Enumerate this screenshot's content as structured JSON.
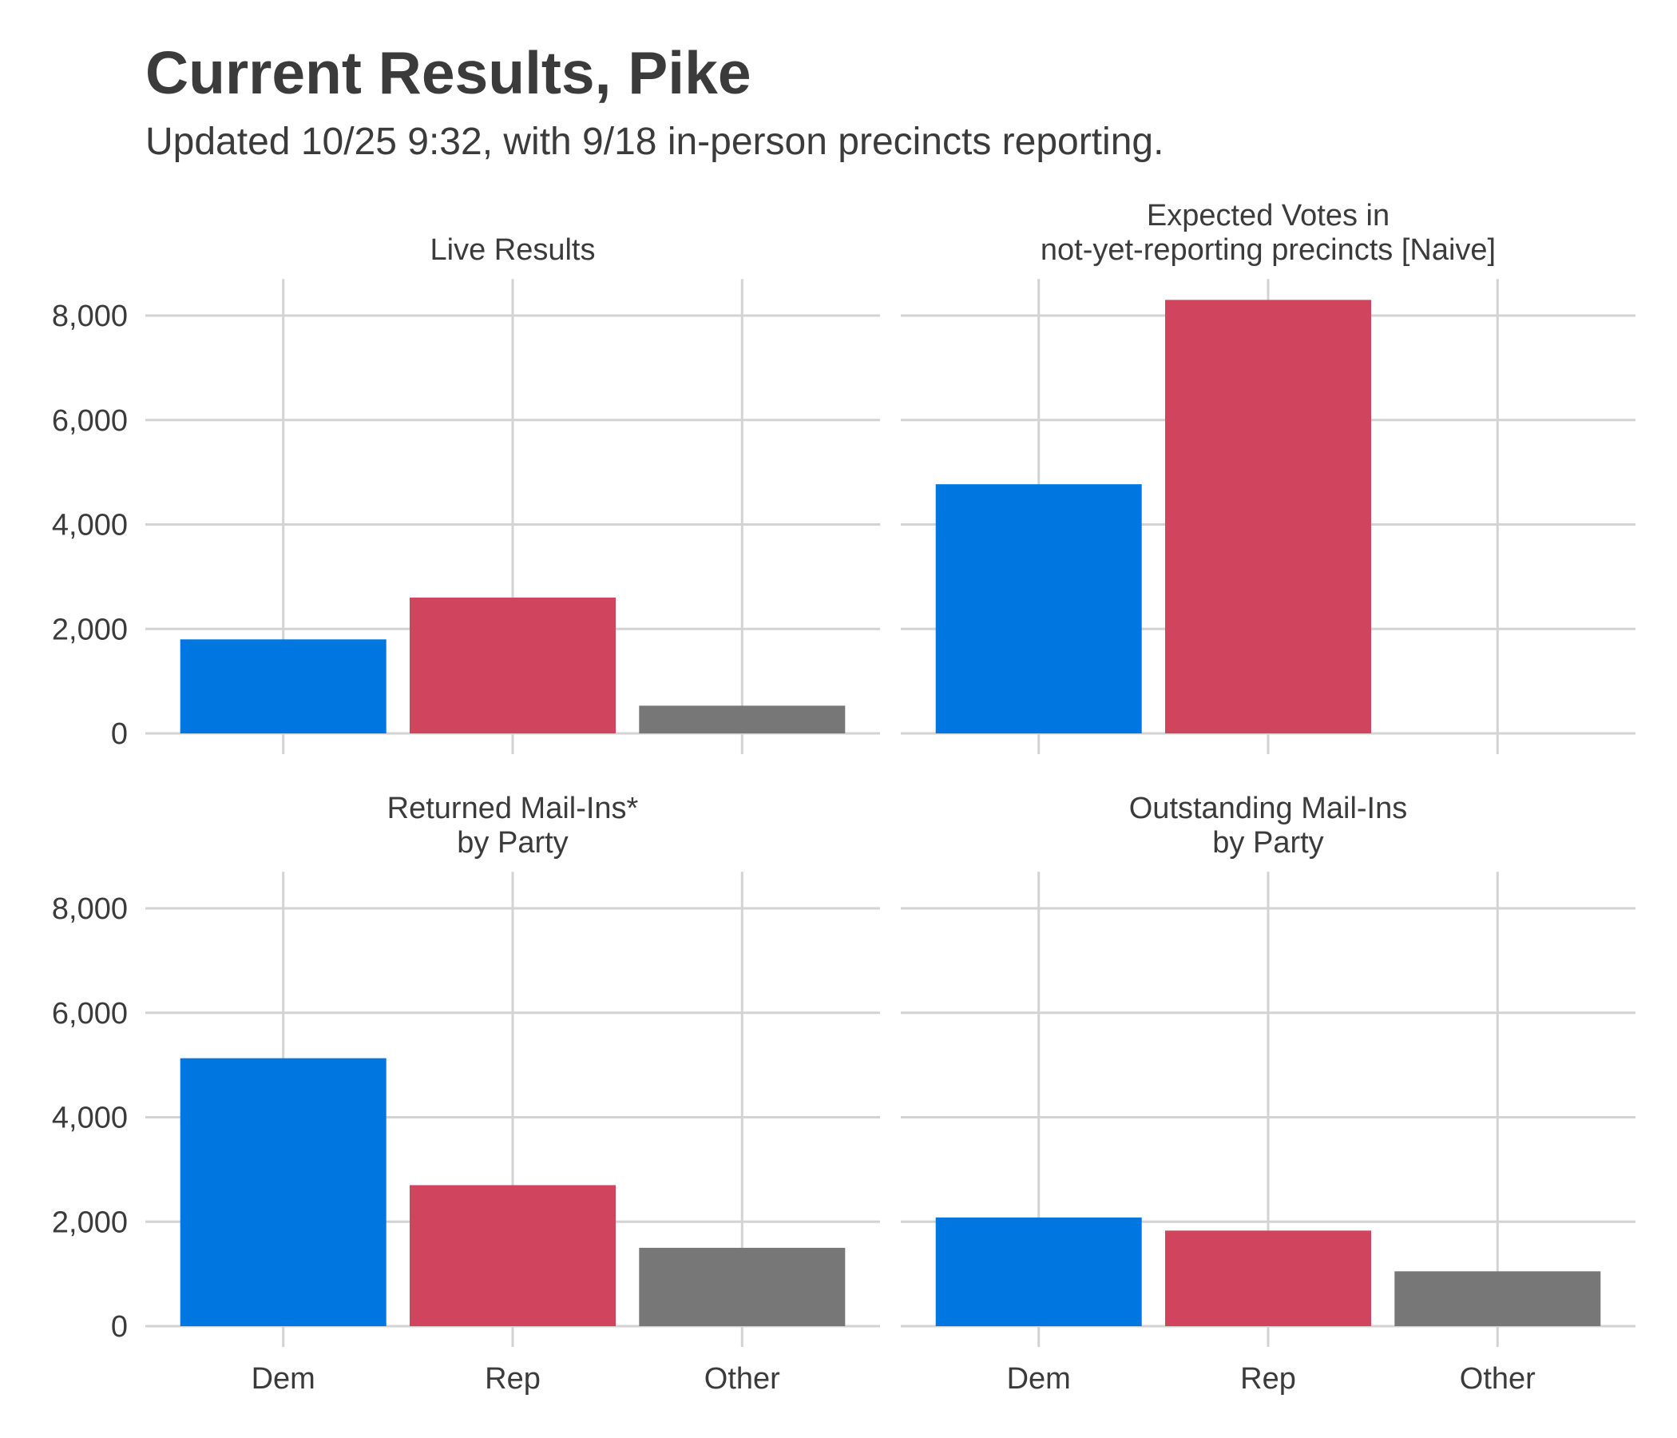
{
  "title": "Current Results, Pike",
  "subtitle": "Updated 10/25 9:32, with 9/18 in-person precincts reporting.",
  "chart_data": {
    "type": "bar",
    "layout": "facet-grid-2x2",
    "categories": [
      "Dem",
      "Rep",
      "Other"
    ],
    "colors": {
      "Dem": "#0077e0",
      "Rep": "#d0445e",
      "Other": "#777777"
    },
    "grid": true,
    "ylim": [
      0,
      8700
    ],
    "y_ticks": [
      0,
      2000,
      4000,
      6000,
      8000
    ],
    "y_tick_labels": [
      "0",
      "2,000",
      "4,000",
      "6,000",
      "8,000"
    ],
    "facets": [
      {
        "title": [
          "Live Results"
        ],
        "values": [
          1800,
          2600,
          530
        ]
      },
      {
        "title": [
          "Expected Votes in",
          "not-yet-reporting precincts [Naive]"
        ],
        "values": [
          4770,
          8300,
          0
        ]
      },
      {
        "title": [
          "Returned Mail-Ins*",
          "by Party"
        ],
        "values": [
          5130,
          2700,
          1500
        ]
      },
      {
        "title": [
          "Outstanding Mail-Ins",
          "by Party"
        ],
        "values": [
          2080,
          1830,
          1050
        ]
      }
    ]
  }
}
